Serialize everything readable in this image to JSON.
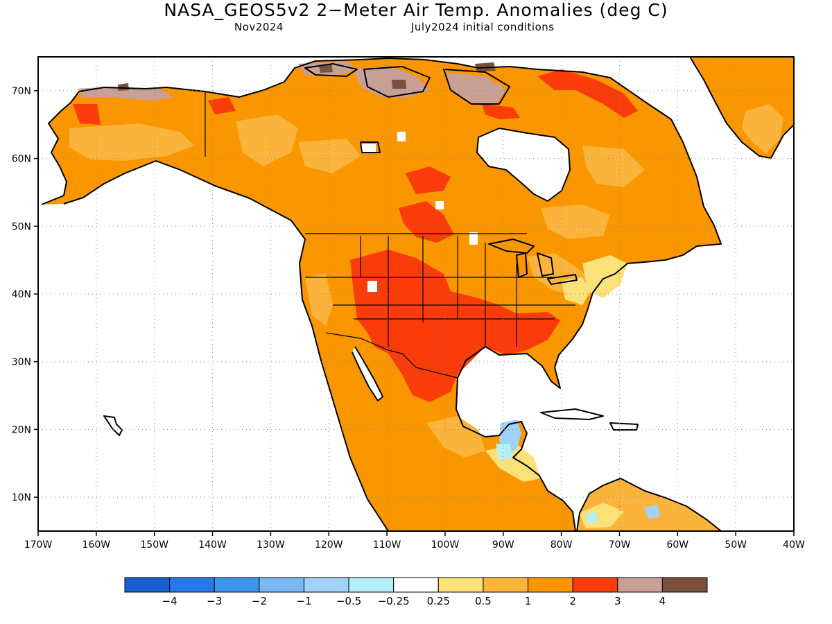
{
  "title": "NASA_GEOS5v2 2−Meter Air Temp. Anomalies (deg C)",
  "subtitle_left": "Nov2024",
  "subtitle_right": "July2024 initial conditions",
  "map": {
    "projection": "cylindrical lat-lon",
    "lon_range": [
      -170,
      -40
    ],
    "lat_range": [
      5,
      75
    ],
    "grid": "dotted",
    "lon_ticks": [
      "170W",
      "160W",
      "150W",
      "140W",
      "130W",
      "120W",
      "110W",
      "100W",
      "90W",
      "80W",
      "70W",
      "60W",
      "50W",
      "40W"
    ],
    "lat_ticks": [
      "10N",
      "20N",
      "30N",
      "40N",
      "50N",
      "60N",
      "70N"
    ],
    "ocean_color": "#ffffff"
  },
  "colorbar": {
    "colors": [
      "#1a5fd0",
      "#2878e8",
      "#3c96f0",
      "#78b9f5",
      "#a0d2fa",
      "#b4f0fa",
      "#ffffff",
      "#fae178",
      "#fab43c",
      "#fa9600",
      "#fa3c0a",
      "#c8a096",
      "#78503c"
    ],
    "labels": [
      "−4",
      "−3",
      "−2",
      "−1",
      "−0.5",
      "−0.25",
      "0.25",
      "0.5",
      "1",
      "2",
      "3",
      "4"
    ]
  },
  "regions": [
    {
      "name": "alaska-western-canada",
      "anomaly": "1 to 2"
    },
    {
      "name": "arctic-islands",
      "anomaly": "3 to 4+"
    },
    {
      "name": "eastern-baffin-and-northern-quebec",
      "anomaly": "2 to 3"
    },
    {
      "name": "greenland",
      "anomaly": "1 to 2"
    },
    {
      "name": "central-and-southern-us",
      "anomaly": "2 to 3"
    },
    {
      "name": "northeast-us",
      "anomaly": "0.25 to 1"
    },
    {
      "name": "mexico",
      "anomaly": "1 to 3"
    },
    {
      "name": "yucatan",
      "anomaly": "-1 to -0.25"
    },
    {
      "name": "northern-south-america",
      "anomaly": "-1 to 1"
    }
  ]
}
